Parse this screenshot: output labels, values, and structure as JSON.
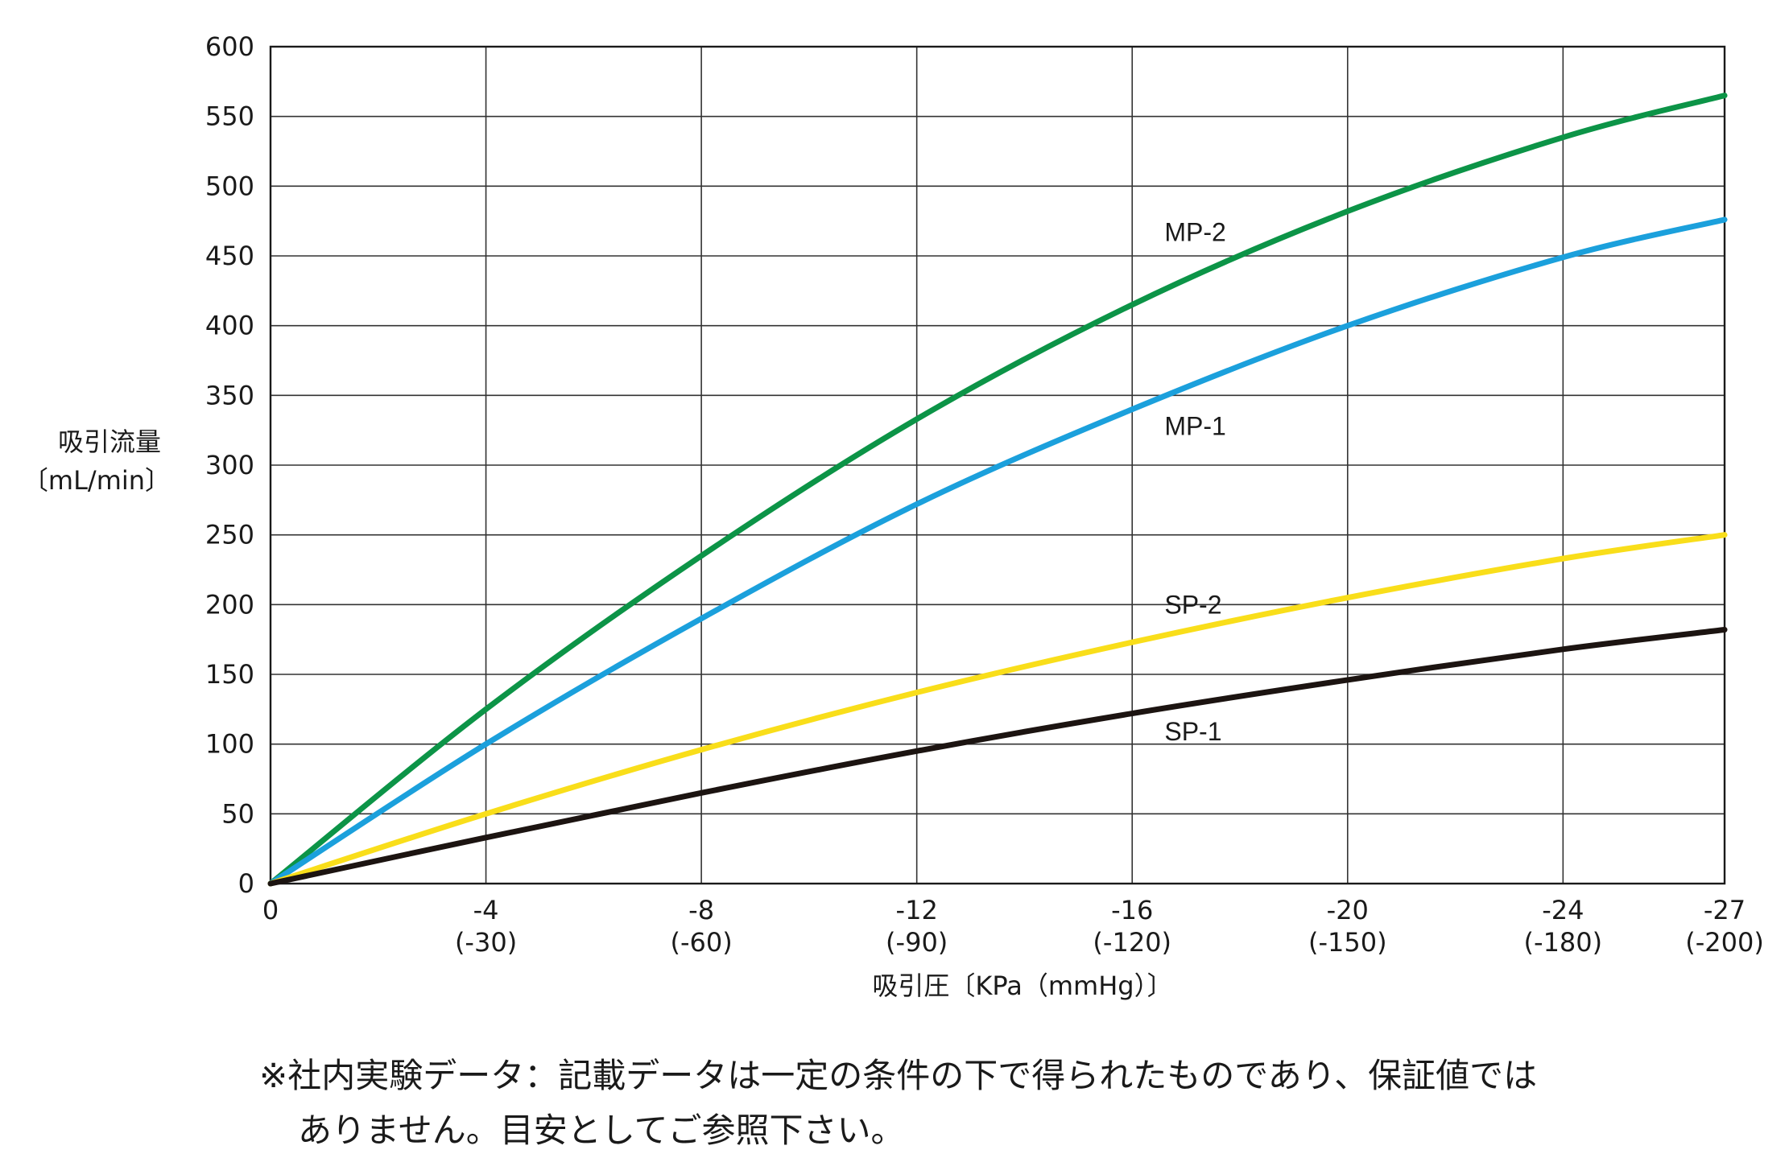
{
  "chart_data": {
    "type": "line",
    "ylabel_line1": "吸引流量",
    "ylabel_line2": "〔mL/min〕",
    "xlabel": "吸引圧〔KPa（mmHg）〕",
    "ylim": [
      0,
      600
    ],
    "xlim": [
      0,
      -27
    ],
    "yticks": [
      0,
      50,
      100,
      150,
      200,
      250,
      300,
      350,
      400,
      450,
      500,
      550,
      600
    ],
    "xticks": [
      {
        "value": 0,
        "kpa": "0",
        "mmhg": ""
      },
      {
        "value": -4,
        "kpa": "-4",
        "mmhg": "(-30)"
      },
      {
        "value": -8,
        "kpa": "-8",
        "mmhg": "(-60)"
      },
      {
        "value": -12,
        "kpa": "-12",
        "mmhg": "(-90)"
      },
      {
        "value": -16,
        "kpa": "-16",
        "mmhg": "(-120)"
      },
      {
        "value": -20,
        "kpa": "-20",
        "mmhg": "(-150)"
      },
      {
        "value": -24,
        "kpa": "-24",
        "mmhg": "(-180)"
      },
      {
        "value": -27,
        "kpa": "-27",
        "mmhg": "(-200)"
      }
    ],
    "grid": true,
    "x": [
      0,
      -4,
      -8,
      -12,
      -16,
      -20,
      -24,
      -27
    ],
    "series": [
      {
        "name": "MP-2",
        "color": "#0c9447",
        "values": [
          0,
          125,
          235,
          333,
          415,
          482,
          535,
          565
        ]
      },
      {
        "name": "MP-1",
        "color": "#1ba0dc",
        "values": [
          0,
          100,
          190,
          272,
          340,
          400,
          449,
          476
        ]
      },
      {
        "name": "SP-2",
        "color": "#f9de1a",
        "values": [
          0,
          50,
          96,
          137,
          173,
          205,
          233,
          250
        ]
      },
      {
        "name": "SP-1",
        "color": "#1c1411",
        "values": [
          0,
          33,
          65,
          95,
          122,
          146,
          168,
          182
        ]
      }
    ],
    "series_label_positions": [
      {
        "name": "MP-2",
        "x": -16.6,
        "y": 467
      },
      {
        "name": "MP-1",
        "x": -16.6,
        "y": 328
      },
      {
        "name": "SP-2",
        "x": -16.6,
        "y": 200
      },
      {
        "name": "SP-1",
        "x": -16.6,
        "y": 109
      }
    ]
  },
  "footnote": {
    "line1": "※社内実験データ：記載データは一定の条件の下で得られたものであり、保証値では",
    "line2": "ありません。目安としてご参照下さい。"
  }
}
